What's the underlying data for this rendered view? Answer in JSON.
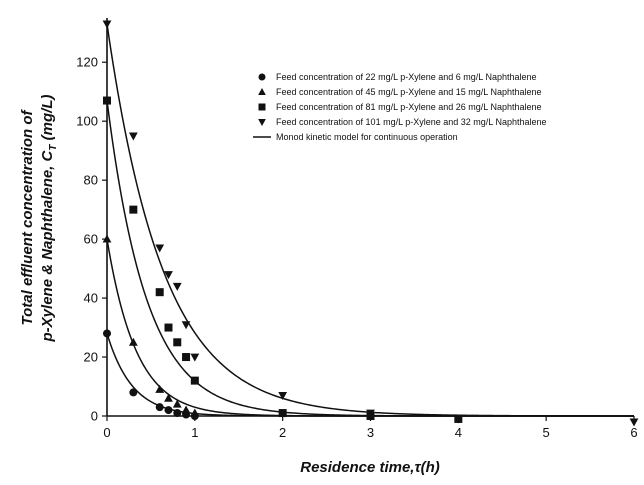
{
  "chart_data": {
    "type": "scatter",
    "title": "",
    "xlabel": "Residence time,τ(h)",
    "ylabel_lines": [
      "Total effluent concentration of",
      "p-Xylene & Naphthalene, C",
      "T",
      " (mg/L)"
    ],
    "xlim": [
      0,
      6
    ],
    "ylim": [
      0,
      135
    ],
    "x_ticks": [
      "0",
      "1",
      "2",
      "3",
      "4",
      "5",
      "6"
    ],
    "y_ticks": [
      "0",
      "20",
      "40",
      "60",
      "80",
      "100",
      "120"
    ],
    "grid": false,
    "legend_position": "top-right",
    "series": [
      {
        "name": "Feed concentration of 22 mg/L p-Xylene and 6 mg/L Naphthalene",
        "marker": "circle",
        "x": [
          0,
          0.3,
          0.6,
          0.7,
          0.8,
          0.9,
          1.0
        ],
        "y": [
          28,
          8,
          3,
          2,
          1,
          0.5,
          0
        ]
      },
      {
        "name": "Feed concentration of 45 mg/L p-Xylene and 15 mg/L Naphthalene",
        "marker": "triangle-up",
        "x": [
          0,
          0.3,
          0.6,
          0.7,
          0.8,
          0.9,
          1.0
        ],
        "y": [
          60,
          25,
          9,
          6,
          4,
          2,
          1
        ]
      },
      {
        "name": "Feed concentration of 81 mg/L p-Xylene and 26 mg/L Naphthalene",
        "marker": "square",
        "x": [
          0,
          0.3,
          0.6,
          0.7,
          0.8,
          0.9,
          1.0,
          2.0,
          3.0,
          4.0
        ],
        "y": [
          107,
          70,
          42,
          30,
          25,
          20,
          12,
          1,
          0,
          -1
        ]
      },
      {
        "name": "Feed concentration of 101 mg/L p-Xylene and 32 mg/L Naphthalene",
        "marker": "triangle-down",
        "x": [
          0,
          0.3,
          0.6,
          0.7,
          0.8,
          0.9,
          1.0,
          2.0,
          3.0,
          4.0,
          6.0
        ],
        "y": [
          133,
          95,
          57,
          48,
          44,
          31,
          20,
          7,
          1,
          -1,
          -2
        ]
      }
    ],
    "model": {
      "name": "Monod kinetic model for continuous operation",
      "curves": [
        {
          "c0": 28,
          "k": 3.5
        },
        {
          "c0": 60,
          "k": 3.0
        },
        {
          "c0": 107,
          "k": 2.2
        },
        {
          "c0": 133,
          "k": 1.55
        }
      ]
    }
  }
}
